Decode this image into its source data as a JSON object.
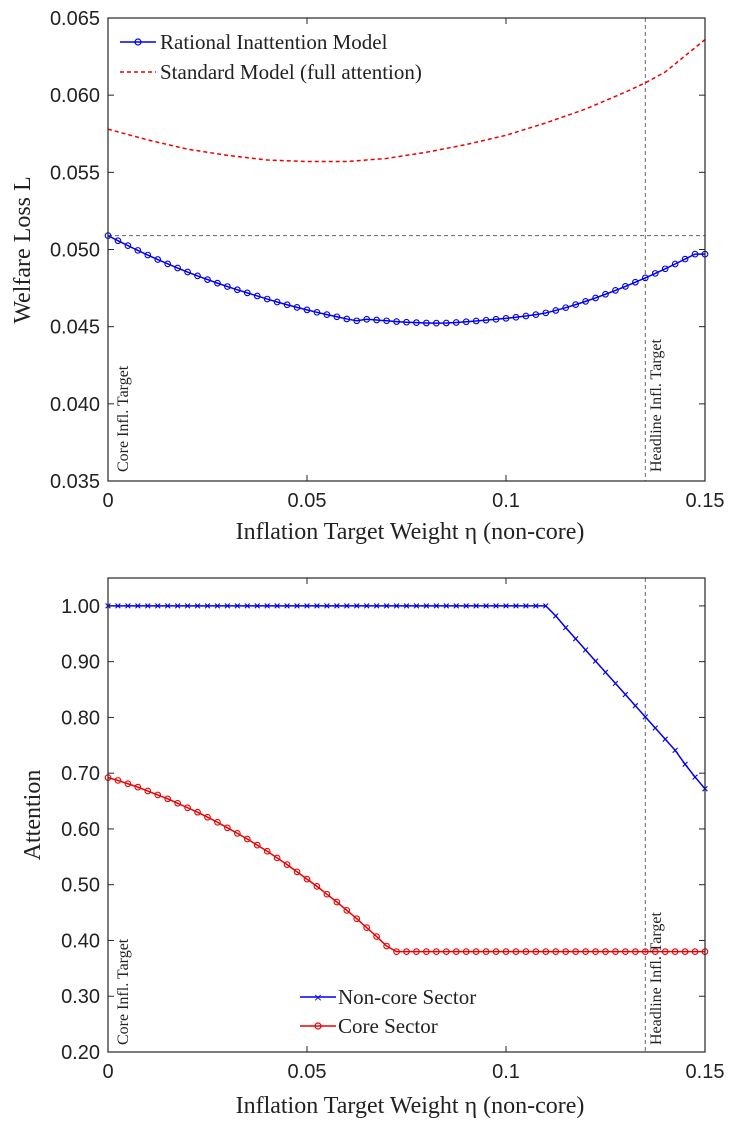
{
  "chart_data": [
    {
      "type": "line",
      "xlabel": "Inflation Target Weight η (non-core)",
      "ylabel": "Welfare Loss L",
      "xlim": [
        0,
        0.15
      ],
      "ylim": [
        0.035,
        0.065
      ],
      "xticks": [
        0,
        0.05,
        0.1,
        0.15
      ],
      "xtick_labels": [
        "0",
        "0.05",
        "0.1",
        "0.15"
      ],
      "yticks": [
        0.035,
        0.04,
        0.045,
        0.05,
        0.055,
        0.06,
        0.065
      ],
      "ytick_labels": [
        "0.035",
        "0.040",
        "0.045",
        "0.050",
        "0.055",
        "0.060",
        "0.065"
      ],
      "grid": false,
      "legend_position": "top-left",
      "reference_lines": {
        "horizontal_y": 0.0509,
        "vertical_x": 0.135
      },
      "vertical_line_labels": [
        "Core Infl. Target",
        "Headline Infl. Target"
      ],
      "series": [
        {
          "name": "Rational Inattention Model",
          "color": "#0000ee",
          "style": "solid-circle-markers",
          "x": [
            0,
            0.0025,
            0.005,
            0.0075,
            0.01,
            0.0125,
            0.015,
            0.0175,
            0.02,
            0.0225,
            0.025,
            0.0275,
            0.03,
            0.0325,
            0.035,
            0.0375,
            0.04,
            0.0425,
            0.045,
            0.0475,
            0.05,
            0.0525,
            0.055,
            0.0575,
            0.06,
            0.0625,
            0.065,
            0.0675,
            0.07,
            0.0725,
            0.075,
            0.0775,
            0.08,
            0.0825,
            0.085,
            0.0875,
            0.09,
            0.0925,
            0.095,
            0.0975,
            0.1,
            0.1025,
            0.105,
            0.1075,
            0.11,
            0.1125,
            0.115,
            0.1175,
            0.12,
            0.1225,
            0.125,
            0.1275,
            0.13,
            0.1325,
            0.135,
            0.1375,
            0.14,
            0.1425,
            0.145,
            0.1475,
            0.15
          ],
          "y": [
            0.0509,
            0.05057,
            0.05025,
            0.04994,
            0.04964,
            0.04935,
            0.04907,
            0.0488,
            0.04854,
            0.04829,
            0.04805,
            0.04782,
            0.0476,
            0.04739,
            0.04719,
            0.04699,
            0.04679,
            0.0466,
            0.04642,
            0.04625,
            0.04609,
            0.04593,
            0.04578,
            0.04564,
            0.0455,
            0.04538,
            0.04548,
            0.04543,
            0.04538,
            0.04533,
            0.04529,
            0.04526,
            0.04524,
            0.04523,
            0.04524,
            0.04527,
            0.04532,
            0.04537,
            0.04542,
            0.04548,
            0.04554,
            0.04561,
            0.04569,
            0.04578,
            0.04589,
            0.04605,
            0.04623,
            0.04643,
            0.04664,
            0.04686,
            0.0471,
            0.04735,
            0.04761,
            0.04788,
            0.04816,
            0.04845,
            0.04875,
            0.04906,
            0.04938,
            0.0497,
            0.0497
          ]
        },
        {
          "name": "Standard Model (full attention)",
          "color": "#ee0000",
          "style": "dashed",
          "x": [
            0,
            0.01,
            0.02,
            0.03,
            0.04,
            0.05,
            0.06,
            0.07,
            0.08,
            0.09,
            0.1,
            0.11,
            0.12,
            0.13,
            0.135,
            0.14,
            0.15
          ],
          "y": [
            0.0578,
            0.0571,
            0.0565,
            0.0561,
            0.0558,
            0.0557,
            0.0557,
            0.0559,
            0.0563,
            0.0568,
            0.0574,
            0.0582,
            0.0591,
            0.0602,
            0.0608,
            0.0615,
            0.0636
          ]
        }
      ]
    },
    {
      "type": "line",
      "xlabel": "Inflation Target Weight η (non-core)",
      "ylabel": "Attention",
      "xlim": [
        0,
        0.15
      ],
      "ylim": [
        0.2,
        1.05
      ],
      "xticks": [
        0,
        0.05,
        0.1,
        0.15
      ],
      "xtick_labels": [
        "0",
        "0.05",
        "0.1",
        "0.15"
      ],
      "yticks": [
        0.2,
        0.3,
        0.4,
        0.5,
        0.6,
        0.7,
        0.8,
        0.9,
        1.0
      ],
      "ytick_labels": [
        "0.20",
        "0.30",
        "0.40",
        "0.50",
        "0.60",
        "0.70",
        "0.80",
        "0.90",
        "1.00"
      ],
      "grid": false,
      "legend_position": "bottom-center",
      "reference_lines": {
        "vertical_x": 0.135
      },
      "vertical_line_labels": [
        "Core Infl. Target",
        "Headline Infl. Target"
      ],
      "series": [
        {
          "name": "Non-core Sector",
          "color": "#0000ee",
          "style": "solid-x-markers",
          "x": [
            0,
            0.0025,
            0.005,
            0.0075,
            0.01,
            0.0125,
            0.015,
            0.0175,
            0.02,
            0.0225,
            0.025,
            0.0275,
            0.03,
            0.0325,
            0.035,
            0.0375,
            0.04,
            0.0425,
            0.045,
            0.0475,
            0.05,
            0.0525,
            0.055,
            0.0575,
            0.06,
            0.0625,
            0.065,
            0.0675,
            0.07,
            0.0725,
            0.075,
            0.0775,
            0.08,
            0.0825,
            0.085,
            0.0875,
            0.09,
            0.0925,
            0.095,
            0.0975,
            0.1,
            0.1025,
            0.105,
            0.1075,
            0.11,
            0.1125,
            0.115,
            0.1175,
            0.12,
            0.1225,
            0.125,
            0.1275,
            0.13,
            0.1325,
            0.135,
            0.1375,
            0.14,
            0.1425,
            0.145,
            0.1475,
            0.15
          ],
          "y": [
            1,
            1,
            1,
            1,
            1,
            1,
            1,
            1,
            1,
            1,
            1,
            1,
            1,
            1,
            1,
            1,
            1,
            1,
            1,
            1,
            1,
            1,
            1,
            1,
            1,
            1,
            1,
            1,
            1,
            1,
            1,
            1,
            1,
            1,
            1,
            1,
            1,
            1,
            1,
            1,
            1,
            1,
            1,
            1,
            1,
            0.982,
            0.961,
            0.941,
            0.921,
            0.901,
            0.881,
            0.861,
            0.841,
            0.821,
            0.801,
            0.781,
            0.761,
            0.741,
            0.716,
            0.693,
            0.672
          ]
        },
        {
          "name": "Core Sector",
          "color": "#ee0000",
          "style": "solid-circle-markers",
          "x": [
            0,
            0.0025,
            0.005,
            0.0075,
            0.01,
            0.0125,
            0.015,
            0.0175,
            0.02,
            0.0225,
            0.025,
            0.0275,
            0.03,
            0.0325,
            0.035,
            0.0375,
            0.04,
            0.0425,
            0.045,
            0.0475,
            0.05,
            0.0525,
            0.055,
            0.0575,
            0.06,
            0.0625,
            0.065,
            0.0675,
            0.07,
            0.0725,
            0.075,
            0.0775,
            0.08,
            0.0825,
            0.085,
            0.0875,
            0.09,
            0.0925,
            0.095,
            0.0975,
            0.1,
            0.1025,
            0.105,
            0.1075,
            0.11,
            0.1125,
            0.115,
            0.1175,
            0.12,
            0.1225,
            0.125,
            0.1275,
            0.13,
            0.1325,
            0.135,
            0.1375,
            0.14,
            0.1425,
            0.145,
            0.1475,
            0.15
          ],
          "y": [
            0.692,
            0.687,
            0.681,
            0.675,
            0.668,
            0.661,
            0.654,
            0.646,
            0.638,
            0.63,
            0.621,
            0.612,
            0.602,
            0.592,
            0.582,
            0.571,
            0.56,
            0.548,
            0.536,
            0.523,
            0.51,
            0.497,
            0.483,
            0.469,
            0.454,
            0.439,
            0.423,
            0.407,
            0.39,
            0.38,
            0.38,
            0.38,
            0.38,
            0.38,
            0.38,
            0.38,
            0.38,
            0.38,
            0.38,
            0.38,
            0.38,
            0.38,
            0.38,
            0.38,
            0.38,
            0.38,
            0.38,
            0.38,
            0.38,
            0.38,
            0.38,
            0.38,
            0.38,
            0.38,
            0.38,
            0.38,
            0.38,
            0.38,
            0.38,
            0.38,
            0.38
          ]
        }
      ]
    }
  ]
}
